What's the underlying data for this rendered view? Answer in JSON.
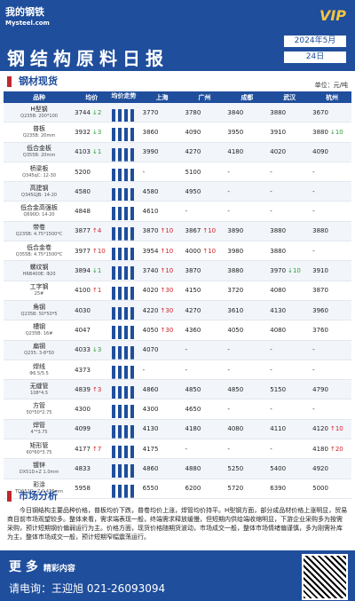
{
  "header": {
    "logo": "我的钢铁",
    "logo_sub": "Mysteel.com",
    "badge": "VIP",
    "title": "钢结构原料日报",
    "month": "2024年5月",
    "day": "24日"
  },
  "spot": {
    "title": "钢材现货",
    "unit": "单位：元/吨",
    "columns": [
      "品种",
      "均价",
      "均价走势",
      "上海",
      "广州",
      "成都",
      "武汉",
      "杭州"
    ],
    "rows": [
      {
        "name": "H型钢",
        "spec": "Q235B: 200*100",
        "avg": [
          "3744",
          "↓2"
        ],
        "cities": [
          [
            "3770"
          ],
          [
            "3780"
          ],
          [
            "3840"
          ],
          [
            "3880"
          ],
          [
            "3670"
          ]
        ]
      },
      {
        "name": "普板",
        "spec": "Q235B: 20mm",
        "avg": [
          "3932",
          "↓3"
        ],
        "cities": [
          [
            "3860"
          ],
          [
            "4090"
          ],
          [
            "3950"
          ],
          [
            "3910"
          ],
          [
            "3880",
            "↓10"
          ]
        ]
      },
      {
        "name": "低合金板",
        "spec": "Q355B: 20mm",
        "avg": [
          "4103",
          "↓1"
        ],
        "cities": [
          [
            "3990"
          ],
          [
            "4270"
          ],
          [
            "4180"
          ],
          [
            "4020"
          ],
          [
            "4090"
          ]
        ]
      },
      {
        "name": "桥梁板",
        "spec": "Q345qC: 12-30",
        "avg": [
          "5200"
        ],
        "cities": [
          [
            "-"
          ],
          [
            "5100"
          ],
          [
            "-"
          ],
          [
            "-"
          ],
          [
            "-"
          ]
        ]
      },
      {
        "name": "高建钢",
        "spec": "Q345GJB: 14-20",
        "avg": [
          "4580"
        ],
        "cities": [
          [
            "4580"
          ],
          [
            "4950"
          ],
          [
            "-"
          ],
          [
            "-"
          ],
          [
            "-"
          ]
        ]
      },
      {
        "name": "低合金高强板",
        "spec": "Q690D: 14-20",
        "avg": [
          "4848"
        ],
        "cities": [
          [
            "4610"
          ],
          [
            "-"
          ],
          [
            "-"
          ],
          [
            "-"
          ],
          [
            "-"
          ]
        ]
      },
      {
        "name": "带卷",
        "spec": "Q235B: 4.75*1500*C",
        "avg": [
          "3877",
          "↑4"
        ],
        "cities": [
          [
            "3870",
            "↑10"
          ],
          [
            "3867",
            "↑10"
          ],
          [
            "3890"
          ],
          [
            "3880"
          ],
          [
            "3880"
          ]
        ]
      },
      {
        "name": "低合金卷",
        "spec": "Q355B: 4.75*1500*C",
        "avg": [
          "3977",
          "↑10"
        ],
        "cities": [
          [
            "3954",
            "↑10"
          ],
          [
            "4000",
            "↑10"
          ],
          [
            "3980"
          ],
          [
            "3880"
          ],
          [
            "-"
          ]
        ]
      },
      {
        "name": "螺纹钢",
        "spec": "HRB400E: Φ20",
        "avg": [
          "3894",
          "↓1"
        ],
        "cities": [
          [
            "3740",
            "↑10"
          ],
          [
            "3870"
          ],
          [
            "3880"
          ],
          [
            "3970",
            "↓10"
          ],
          [
            "3910"
          ]
        ]
      },
      {
        "name": "工字钢",
        "spec": "25#",
        "avg": [
          "4100",
          "↑1"
        ],
        "cities": [
          [
            "4020",
            "↑30"
          ],
          [
            "4150"
          ],
          [
            "3720"
          ],
          [
            "4080"
          ],
          [
            "3870"
          ]
        ]
      },
      {
        "name": "角钢",
        "spec": "Q235B: 50*50*5",
        "avg": [
          "4030"
        ],
        "cities": [
          [
            "4220",
            "↑30"
          ],
          [
            "4270"
          ],
          [
            "3610"
          ],
          [
            "4130"
          ],
          [
            "3960"
          ]
        ]
      },
      {
        "name": "槽钢",
        "spec": "Q235B: 16#",
        "avg": [
          "4047"
        ],
        "cities": [
          [
            "4050",
            "↑30"
          ],
          [
            "4360"
          ],
          [
            "4050"
          ],
          [
            "4080"
          ],
          [
            "3760"
          ]
        ]
      },
      {
        "name": "扁钢",
        "spec": "Q235: 3-8*50",
        "avg": [
          "4033",
          "↓3"
        ],
        "cities": [
          [
            "4070"
          ],
          [
            "-"
          ],
          [
            "-"
          ],
          [
            "-"
          ],
          [
            "-"
          ]
        ]
      },
      {
        "name": "焊线",
        "spec": "Φ6.5/5.5",
        "avg": [
          "4373"
        ],
        "cities": [
          [
            "-"
          ],
          [
            "-"
          ],
          [
            "-"
          ],
          [
            "-"
          ],
          [
            "-"
          ]
        ]
      },
      {
        "name": "无缝管",
        "spec": "108*4.5",
        "avg": [
          "4839",
          "↑3"
        ],
        "cities": [
          [
            "4860"
          ],
          [
            "4850"
          ],
          [
            "4850"
          ],
          [
            "5150"
          ],
          [
            "4790"
          ]
        ]
      },
      {
        "name": "方管",
        "spec": "50*50*2.75",
        "avg": [
          "4300"
        ],
        "cities": [
          [
            "4300"
          ],
          [
            "4650"
          ],
          [
            "-"
          ],
          [
            "-"
          ],
          [
            "-"
          ]
        ]
      },
      {
        "name": "焊管",
        "spec": "4\"*3.75",
        "avg": [
          "4099"
        ],
        "cities": [
          [
            "4130"
          ],
          [
            "4180"
          ],
          [
            "4080"
          ],
          [
            "4110"
          ],
          [
            "4120",
            "↑10"
          ]
        ]
      },
      {
        "name": "矩形管",
        "spec": "60*60*3.75",
        "avg": [
          "4177",
          "↑7"
        ],
        "cities": [
          [
            "4175"
          ],
          [
            "-"
          ],
          [
            "-"
          ],
          [
            "-"
          ],
          [
            "4180",
            "↑20"
          ]
        ]
      },
      {
        "name": "镀锌",
        "spec": "DX51D+Z 1.0mm",
        "avg": [
          "4833"
        ],
        "cities": [
          [
            "4860"
          ],
          [
            "4880"
          ],
          [
            "5250"
          ],
          [
            "5400"
          ],
          [
            "4920"
          ]
        ]
      },
      {
        "name": "彩涂",
        "spec": "TDC51D+Z 0.476mm",
        "avg": [
          "5958"
        ],
        "cities": [
          [
            "6550"
          ],
          [
            "6200"
          ],
          [
            "5720"
          ],
          [
            "6390"
          ],
          [
            "5000"
          ]
        ]
      }
    ]
  },
  "analysis": {
    "title": "市场分析",
    "text": "今日钢结构主要品种价格，普板均价下跌，普卷均价上涨，焊管均价持平。H型钢方面，部分成品材价格上涨明显，贸易商目前市场观望较多。整体来看，需求端表现一般，终端需求释放缓慢，但短期内供给端收缩明显，下游企业采购多为按需采购，预计短期钢价偏弱运行为主。价格方面，现货价格随期货波动，市场成交一般，整体市场情绪偏谨慎，多为刚需补库为主，整体市场成交一般，预计短期窄幅震荡运行。"
  },
  "footer": {
    "more": "更 多",
    "more_sub": "精彩内容",
    "contact": "请电询：王迎旭  021-26093094"
  }
}
